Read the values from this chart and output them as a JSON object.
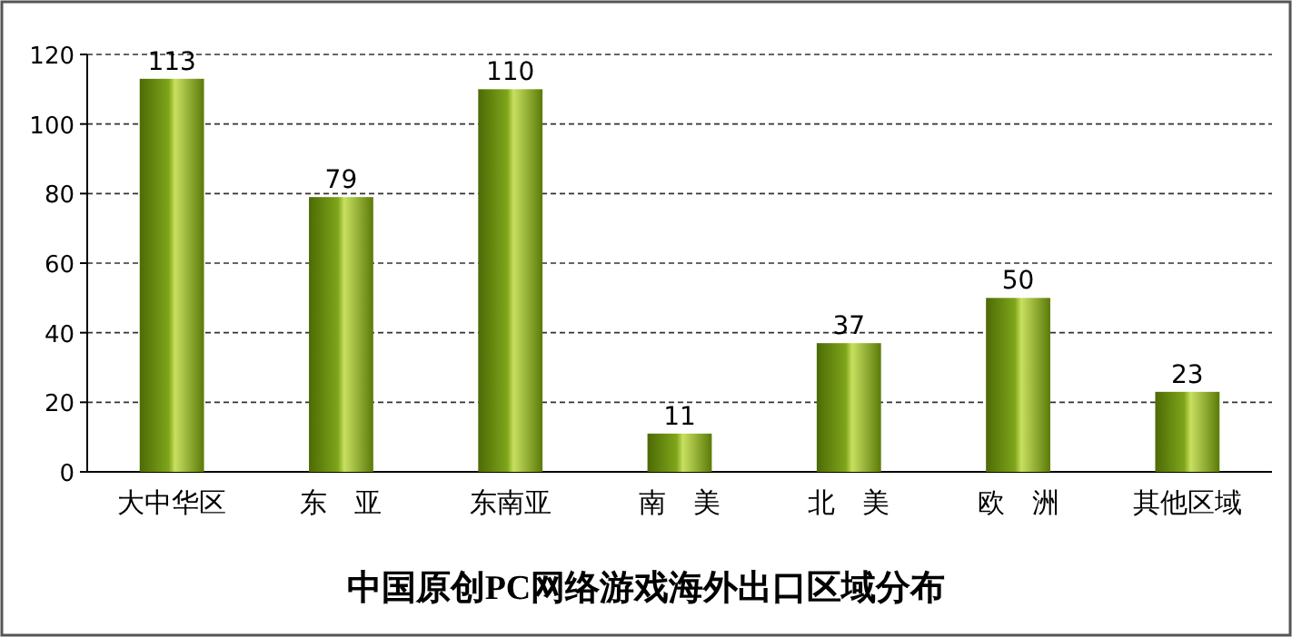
{
  "chart_data": {
    "type": "bar",
    "title": "中国原创PC网络游戏海外出口区域分布",
    "categories": [
      "大中华区",
      "东　亚",
      "东南亚",
      "南　美",
      "北　美",
      "欧　洲",
      "其他区域"
    ],
    "values": [
      113,
      79,
      110,
      11,
      37,
      50,
      23
    ],
    "color": "#7ea51a",
    "ylim": [
      0,
      120
    ],
    "yticks": [
      0,
      20,
      40,
      60,
      80,
      100,
      120
    ],
    "grid": "y",
    "data_labels": true
  }
}
